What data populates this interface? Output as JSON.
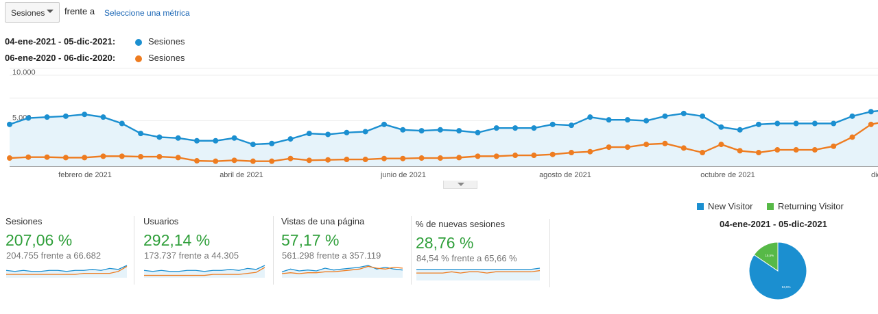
{
  "toolbar": {
    "metric_select_value": "Sesiones",
    "vs_text": "frente a",
    "select_metric_link": "Seleccione una métrica"
  },
  "legend": {
    "series": [
      {
        "range": "04-ene-2021 - 05-dic-2021:",
        "name": "Sesiones",
        "color": "#1b8fd0"
      },
      {
        "range": "06-ene-2020 - 06-dic-2020:",
        "name": "Sesiones",
        "color": "#ee7c20"
      }
    ]
  },
  "chart_data": {
    "type": "line",
    "y_tick_labels": [
      "10.000",
      "5.000"
    ],
    "x_tick_labels": [
      "febrero de 2021",
      "abril de 2021",
      "junio de 2021",
      "agosto de 2021",
      "octubre de 2021",
      "dici"
    ],
    "ylim": [
      0,
      10000
    ],
    "grid": true,
    "series": [
      {
        "name": "Sesiones",
        "color": "#1b8fd0",
        "fill": true,
        "values": [
          4600,
          5300,
          5400,
          5500,
          5700,
          5400,
          4700,
          3600,
          3200,
          3100,
          2800,
          2800,
          3100,
          2400,
          2500,
          3000,
          3600,
          3500,
          3700,
          3800,
          4600,
          4000,
          3900,
          4000,
          3900,
          3700,
          4200,
          4200,
          4200,
          4600,
          4500,
          5400,
          5100,
          5100,
          5000,
          5500,
          5800,
          5500,
          4300,
          4000,
          4600,
          4700,
          4700,
          4700,
          4700,
          5500,
          6000,
          6200,
          6400
        ]
      },
      {
        "name": "Sesiones",
        "color": "#ee7c20",
        "fill": false,
        "values": [
          900,
          1000,
          1000,
          950,
          950,
          1100,
          1100,
          1050,
          1050,
          950,
          600,
          550,
          650,
          550,
          550,
          850,
          650,
          700,
          750,
          750,
          850,
          850,
          900,
          900,
          950,
          1100,
          1100,
          1200,
          1200,
          1300,
          1500,
          1600,
          2100,
          2100,
          2400,
          2500,
          2000,
          1500,
          2400,
          1700,
          1500,
          1800,
          1800,
          1800,
          2200,
          3200,
          4600,
          5000
        ]
      }
    ]
  },
  "metrics": [
    {
      "title": "Sesiones",
      "pct": "207,06 %",
      "compare": "204.755 frente a 66.682",
      "spark_blue": [
        6,
        5,
        6,
        5,
        5,
        6,
        6,
        5,
        6,
        6,
        7,
        6,
        8,
        7,
        11
      ],
      "spark_orange": [
        2,
        2,
        2,
        2,
        2,
        2,
        2,
        2,
        2,
        3,
        3,
        3,
        3,
        5,
        10
      ]
    },
    {
      "title": "Usuarios",
      "pct": "292,14 %",
      "compare": "173.737 frente a 44.305",
      "spark_blue": [
        6,
        5,
        6,
        5,
        5,
        6,
        6,
        5,
        6,
        6,
        7,
        6,
        8,
        7,
        11
      ],
      "spark_orange": [
        1,
        1,
        1,
        1,
        1,
        1,
        1,
        1,
        2,
        2,
        2,
        2,
        3,
        4,
        9
      ]
    },
    {
      "title": "Vistas de una página",
      "pct": "57,17 %",
      "compare": "561.298 frente a 357.119",
      "spark_blue": [
        5,
        8,
        6,
        7,
        6,
        9,
        7,
        8,
        9,
        10,
        12,
        8,
        10,
        8,
        7
      ],
      "spark_orange": [
        3,
        4,
        3,
        4,
        4,
        5,
        5,
        6,
        7,
        8,
        11,
        9,
        8,
        10,
        9
      ]
    },
    {
      "title": "% de nuevas sesiones",
      "pct": "28,76 %",
      "compare": "84,54 % frente a 65,66 %",
      "spark_blue": [
        8,
        8,
        8,
        8,
        8,
        8,
        8,
        8,
        8,
        8,
        8,
        8,
        8,
        8,
        9
      ],
      "spark_orange": [
        5,
        5,
        5,
        5,
        6,
        5,
        6,
        6,
        5,
        6,
        6,
        6,
        6,
        6,
        7
      ]
    }
  ],
  "pie": {
    "legend": [
      {
        "label": "New Visitor",
        "color": "#1b8fd0"
      },
      {
        "label": "Returning Visitor",
        "color": "#57b947"
      }
    ],
    "title": "04-ene-2021 - 05-dic-2021",
    "slices": [
      {
        "label": "New Visitor",
        "value": 84.5,
        "text": "84,5%",
        "color": "#1b8fd0"
      },
      {
        "label": "Returning Visitor",
        "value": 15.5,
        "text": "15,5%",
        "color": "#57b947"
      }
    ]
  }
}
